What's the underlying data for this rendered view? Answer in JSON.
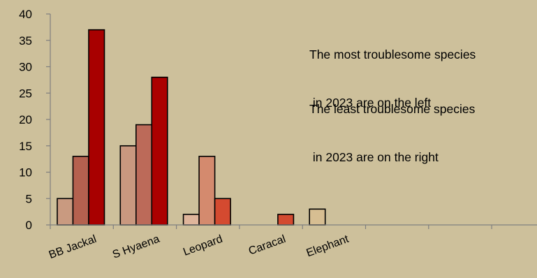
{
  "chart_data": {
    "type": "bar",
    "categories": [
      "BB Jackal",
      "S Hyaena",
      "Leopard",
      "Caracal",
      "Elephant",
      "",
      "",
      ""
    ],
    "series": [
      {
        "values": [
          5,
          15,
          2,
          0,
          3,
          0,
          0,
          0
        ]
      },
      {
        "values": [
          13,
          19,
          13,
          0,
          0,
          0,
          0,
          0
        ]
      },
      {
        "values": [
          37,
          28,
          5,
          2,
          0,
          0,
          0,
          0
        ]
      }
    ],
    "bar_colors": [
      [
        "#c99a80",
        "#c9987f",
        "#dfb59b",
        "#e8d6b8",
        "#d7be92",
        "",
        "",
        ""
      ],
      [
        "#b5614f",
        "#bc6a59",
        "#d48a6e",
        "#e8d6b8",
        "#d7be92",
        "",
        "",
        ""
      ],
      [
        "#a80000",
        "#ab0000",
        "#d44a30",
        "#d34a30",
        "#d7be92",
        "",
        "",
        ""
      ]
    ],
    "ylim": [
      0,
      40
    ],
    "yticks": [
      "0",
      "5",
      "10",
      "15",
      "20",
      "25",
      "30",
      "35",
      "40"
    ],
    "title": "",
    "xlabel": "",
    "ylabel": "",
    "grid": false,
    "annotations": [
      {
        "line1": "The most troublesome species",
        "line2": " in 2023 are on the left"
      },
      {
        "line1": "The least troublesome species",
        "line2": " in 2023 are on the right"
      }
    ]
  }
}
